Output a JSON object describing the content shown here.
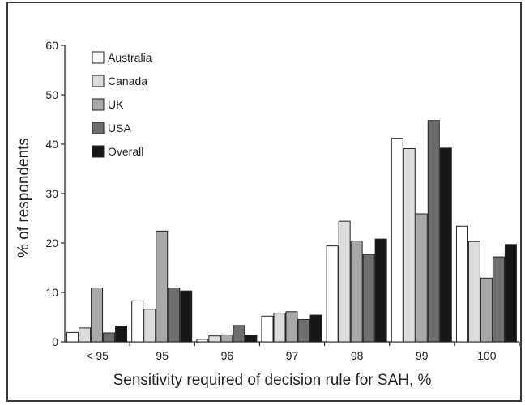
{
  "chart_data": {
    "type": "bar",
    "xlabel": "Sensitivity required of decision rule for SAH, %",
    "ylabel": "% of respondents",
    "ylim": [
      0,
      60
    ],
    "yticks": [
      0,
      10,
      20,
      30,
      40,
      50,
      60
    ],
    "categories": [
      "< 95",
      "95",
      "96",
      "97",
      "98",
      "99",
      "100"
    ],
    "series": [
      {
        "name": "Australia",
        "color": "#ffffff",
        "values": [
          1.9,
          8.3,
          0.5,
          5.2,
          19.4,
          41.2,
          23.4
        ]
      },
      {
        "name": "Canada",
        "color": "#dcdcdc",
        "values": [
          2.8,
          6.6,
          1.2,
          5.8,
          24.4,
          39.1,
          20.3
        ]
      },
      {
        "name": "UK",
        "color": "#a8a8a8",
        "values": [
          10.9,
          22.4,
          1.4,
          6.1,
          20.4,
          25.9,
          12.9
        ]
      },
      {
        "name": "USA",
        "color": "#6e6e6e",
        "values": [
          1.8,
          10.9,
          3.3,
          4.5,
          17.7,
          44.8,
          17.2
        ]
      },
      {
        "name": "Overall",
        "color": "#161616",
        "values": [
          3.2,
          10.3,
          1.4,
          5.4,
          20.8,
          39.2,
          19.7
        ]
      }
    ],
    "legend_position": "top-left",
    "grid": false
  }
}
